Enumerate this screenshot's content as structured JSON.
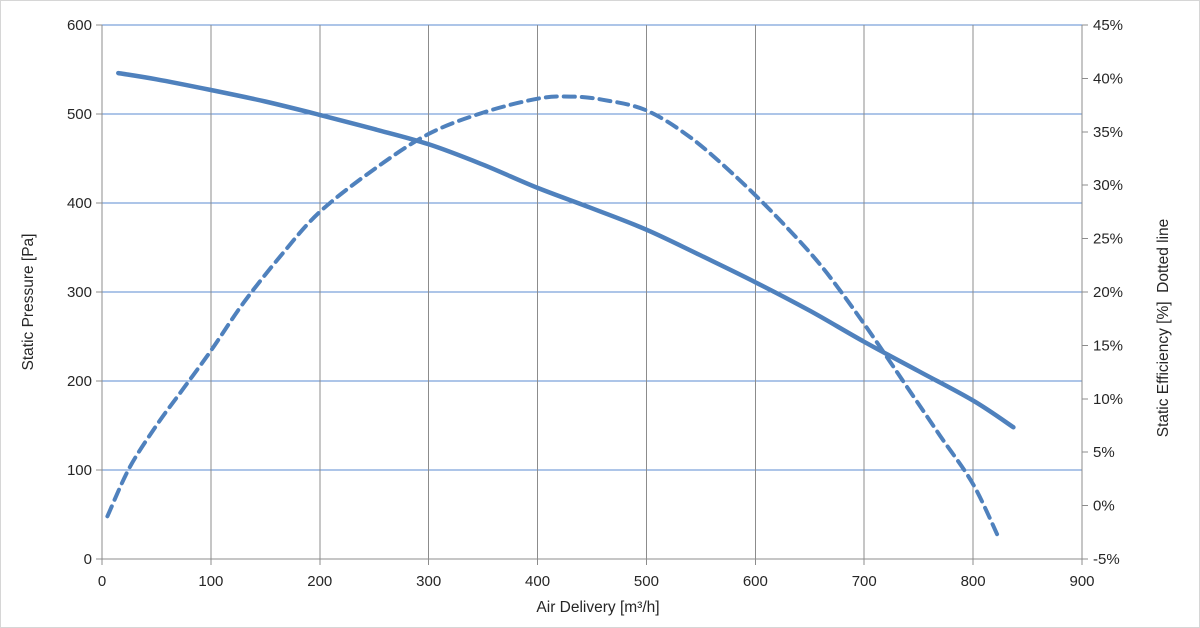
{
  "chart_data": {
    "type": "line",
    "title": "",
    "xlabel": "Air Delivery [m³/h]",
    "ylabel_left": "Static Pressure [Pa]",
    "ylabel_right": "Static Efficiency [%]  Dotted line",
    "grid": {
      "horizontal_on": true,
      "vertical_on": true
    },
    "legend_position": "none",
    "x_axis": {
      "min": 0,
      "max": 900,
      "tick_step": 100,
      "ticks": [
        0,
        100,
        200,
        300,
        400,
        500,
        600,
        700,
        800,
        900
      ],
      "tick_labels": [
        "0",
        "100",
        "200",
        "300",
        "400",
        "500",
        "600",
        "700",
        "800",
        "900"
      ]
    },
    "y_left_axis": {
      "min": 0,
      "max": 600,
      "tick_step": 100,
      "ticks": [
        0,
        100,
        200,
        300,
        400,
        500,
        600
      ],
      "tick_labels": [
        "0",
        "100",
        "200",
        "300",
        "400",
        "500",
        "600"
      ]
    },
    "y_right_axis": {
      "min": -5,
      "max": 45,
      "tick_step": 5,
      "ticks": [
        -5,
        0,
        5,
        10,
        15,
        20,
        25,
        30,
        35,
        40,
        45
      ],
      "tick_labels": [
        "-5%",
        "0%",
        "5%",
        "10%",
        "15%",
        "20%",
        "25%",
        "30%",
        "35%",
        "40%",
        "45%"
      ]
    },
    "series": [
      {
        "name": "Static Pressure",
        "axis": "left",
        "style": "solid",
        "color": "#4f81bd",
        "stroke_width": 4.5,
        "points": [
          [
            15,
            546
          ],
          [
            50,
            539
          ],
          [
            100,
            527
          ],
          [
            150,
            514
          ],
          [
            200,
            499
          ],
          [
            250,
            483
          ],
          [
            300,
            466
          ],
          [
            350,
            443
          ],
          [
            400,
            417
          ],
          [
            450,
            394
          ],
          [
            500,
            370
          ],
          [
            550,
            341
          ],
          [
            600,
            311
          ],
          [
            650,
            279
          ],
          [
            700,
            244
          ],
          [
            750,
            211
          ],
          [
            800,
            178
          ],
          [
            837,
            148
          ]
        ]
      },
      {
        "name": "Static Efficiency",
        "axis": "right",
        "style": "dashed",
        "color": "#4f81bd",
        "stroke_width": 4,
        "points": [
          [
            5,
            -1
          ],
          [
            25,
            3.5
          ],
          [
            50,
            7.5
          ],
          [
            75,
            11
          ],
          [
            100,
            14.5
          ],
          [
            130,
            19
          ],
          [
            165,
            23.5
          ],
          [
            200,
            27.5
          ],
          [
            250,
            31.5
          ],
          [
            300,
            34.8
          ],
          [
            350,
            36.8
          ],
          [
            400,
            38.1
          ],
          [
            430,
            38.3
          ],
          [
            460,
            38
          ],
          [
            500,
            37
          ],
          [
            540,
            34.5
          ],
          [
            580,
            31
          ],
          [
            620,
            27
          ],
          [
            660,
            22.5
          ],
          [
            700,
            17
          ],
          [
            740,
            11
          ],
          [
            770,
            6.5
          ],
          [
            800,
            2
          ],
          [
            823,
            -2.9
          ]
        ]
      }
    ],
    "colors": {
      "curve_blue": "#4f81bd",
      "h_gridline": "#5b8bd0",
      "v_gridline": "#8c8c8c",
      "axis_line": "#8c8c8c",
      "tick_text": "#262626",
      "background": "#ffffff",
      "canvas_border": "#d6d6d6"
    }
  }
}
